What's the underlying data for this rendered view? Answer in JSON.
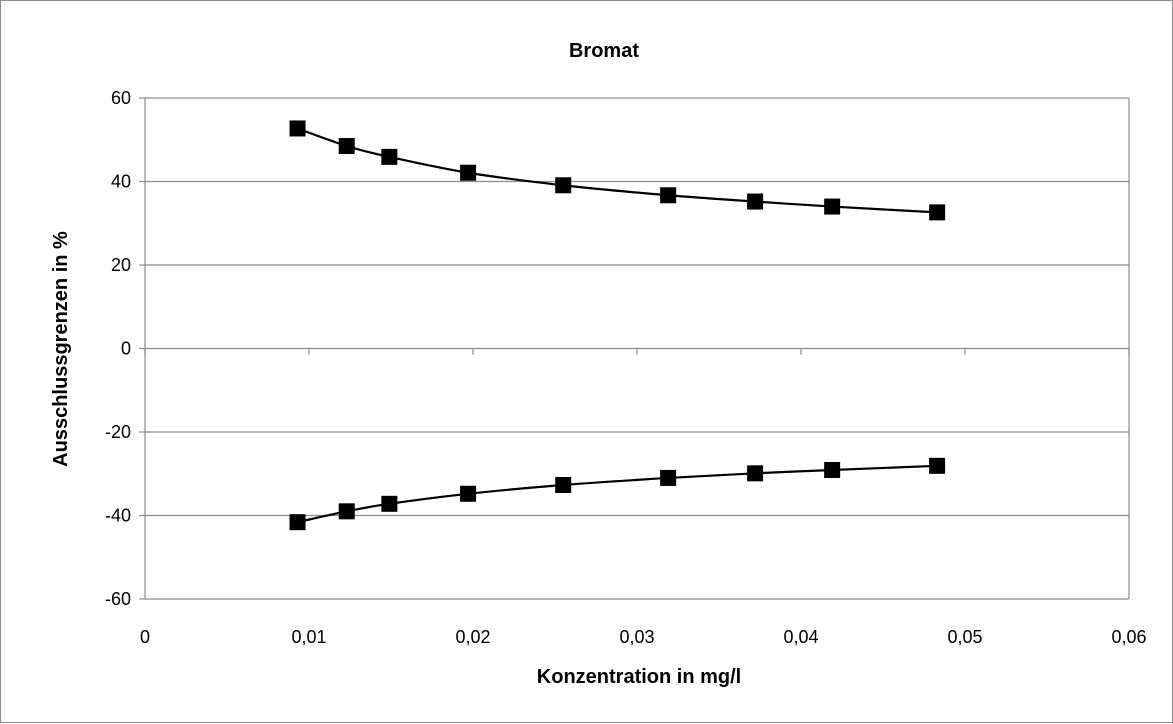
{
  "chart_data": {
    "type": "line",
    "title": "Bromat",
    "xlabel": "Konzentration in mg/l",
    "ylabel": "Ausschlussgrenzen in %",
    "xlim": [
      0,
      0.06
    ],
    "ylim": [
      -60,
      60
    ],
    "x_ticks": [
      0,
      0.01,
      0.02,
      0.03,
      0.04,
      0.05,
      0.06
    ],
    "x_tick_labels": [
      "0",
      "0,01",
      "0,02",
      "0,03",
      "0,04",
      "0,05",
      "0,06"
    ],
    "y_ticks": [
      60,
      40,
      20,
      0,
      -20,
      -40,
      -60
    ],
    "y_tick_labels": [
      "60",
      "40",
      "20",
      "0",
      "-20",
      "-40",
      "-60"
    ],
    "grid": "horizontal",
    "legend": "none",
    "marker": "square",
    "series": [
      {
        "x": [
          0.0093,
          0.0123,
          0.0149,
          0.0197,
          0.0255,
          0.0319,
          0.0372,
          0.0419,
          0.0483
        ],
        "y": [
          52.7,
          48.5,
          45.9,
          42.1,
          39.1,
          36.7,
          35.2,
          34.0,
          32.6
        ]
      },
      {
        "x": [
          0.0093,
          0.0123,
          0.0149,
          0.0197,
          0.0255,
          0.0319,
          0.0372,
          0.0419,
          0.0483
        ],
        "y": [
          -41.6,
          -39.0,
          -37.2,
          -34.8,
          -32.7,
          -31.0,
          -29.9,
          -29.1,
          -28.1
        ]
      }
    ],
    "colors": {
      "line": "#000000",
      "marker": "#000000",
      "grid": "#8c8c8c",
      "axis": "#8c8c8c"
    }
  }
}
